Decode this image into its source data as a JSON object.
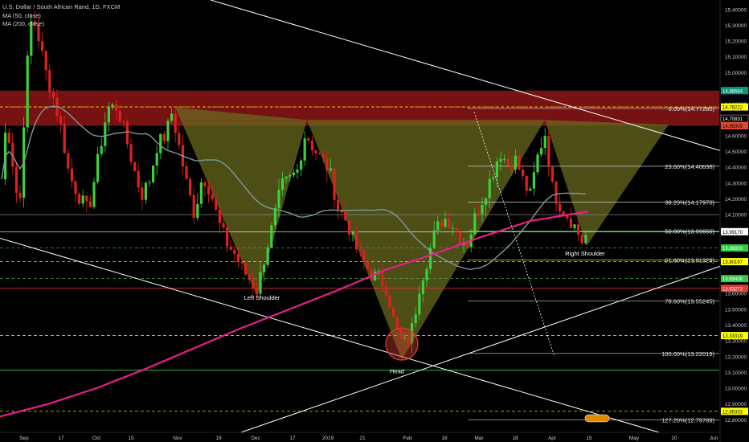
{
  "header": {
    "title": "U.S. Dollar / South African Rand, 1D, FXCM",
    "ma50": "MA (50, close)",
    "ma200": "MA (200, close)"
  },
  "chart_data": {
    "type": "candlestick",
    "title": "U.S. Dollar / South African Rand, 1D, FXCM",
    "ylim": [
      12.72,
      15.46
    ],
    "x_ticks": [
      "Sep",
      "17",
      "Oct",
      "15",
      "Nov",
      "19",
      "Dec",
      "17",
      "2019",
      "21",
      "Feb",
      "18",
      "Mar",
      "18",
      "Apr",
      "15",
      "May",
      "20",
      "Jun"
    ],
    "y_ticks": [
      15.4,
      15.3,
      15.2,
      15.1,
      15.0,
      14.9,
      14.8,
      14.7,
      14.6,
      14.5,
      14.4,
      14.3,
      14.2,
      14.1,
      14.0,
      13.9,
      13.8,
      13.7,
      13.6,
      13.5,
      13.4,
      13.3,
      13.2,
      13.1,
      13.0,
      12.9,
      12.8
    ],
    "price_tags": [
      {
        "value": 14.88564,
        "label": "14.88564",
        "color": "#089981",
        "text_color": "#ffffff"
      },
      {
        "value": 14.78222,
        "label": "14.78222",
        "color": "#ffff00",
        "text_color": "#000000"
      },
      {
        "value": 14.70831,
        "label": "14.70831",
        "color": "#000000",
        "text_color": "#ffffff"
      },
      {
        "value": 14.66309,
        "label": "14.66309",
        "color": "#e24a2e",
        "text_color": "#000000"
      },
      {
        "value": 13.9917,
        "label": "13.99170",
        "color": "#ffffff",
        "text_color": "#000000"
      },
      {
        "value": 13.88839,
        "label": "13.88839",
        "color": "#2ecc40",
        "text_color": "#ffffff"
      },
      {
        "value": 13.80197,
        "label": "13.80197",
        "color": "#ffff00",
        "text_color": "#000000"
      },
      {
        "value": 13.69436,
        "label": "13.69436",
        "color": "#2ecc40",
        "text_color": "#ffffff"
      },
      {
        "value": 13.63273,
        "label": "13.63273",
        "color": "#e53935",
        "text_color": "#ffffff"
      },
      {
        "value": 13.33319,
        "label": "13.33319",
        "color": "#ffff00",
        "text_color": "#000000"
      },
      {
        "value": 12.85333,
        "label": "12.85333",
        "color": "#ffff00",
        "text_color": "#000000"
      }
    ],
    "fib_levels": [
      {
        "ratio": "0.00%",
        "value": 14.7728,
        "label": "0.00%(14.77280)"
      },
      {
        "ratio": "23.60%",
        "value": 14.40638,
        "label": "23.60%(14.40638)"
      },
      {
        "ratio": "38.20%",
        "value": 14.1797,
        "label": "38.20%(14.17970)"
      },
      {
        "ratio": "50.00%",
        "value": 13.9965,
        "label": "50.00%(13.99650)"
      },
      {
        "ratio": "61.80%",
        "value": 13.81329,
        "label": "61.80%(13.81329)"
      },
      {
        "ratio": "78.60%",
        "value": 13.55245,
        "label": "78.60%(13.55245)"
      },
      {
        "ratio": "100.00%",
        "value": 13.22019,
        "label": "100.00%(13.22019)"
      },
      {
        "ratio": "127.20%",
        "value": 12.79789,
        "label": "127.20%(12.79789)"
      }
    ],
    "annotations": [
      "Left Shoulder",
      "Head",
      "Right Shoulder"
    ],
    "resistance_zone": [
      14.66309,
      14.88564
    ],
    "colors": {
      "background": "#000000",
      "up": "#3bd13b",
      "down": "#e02020",
      "ma50": "#7d9a97",
      "ma200": "#e91e8c",
      "pattern_fill": "#6b6b1e",
      "zone_fill": "#8b1515"
    }
  }
}
